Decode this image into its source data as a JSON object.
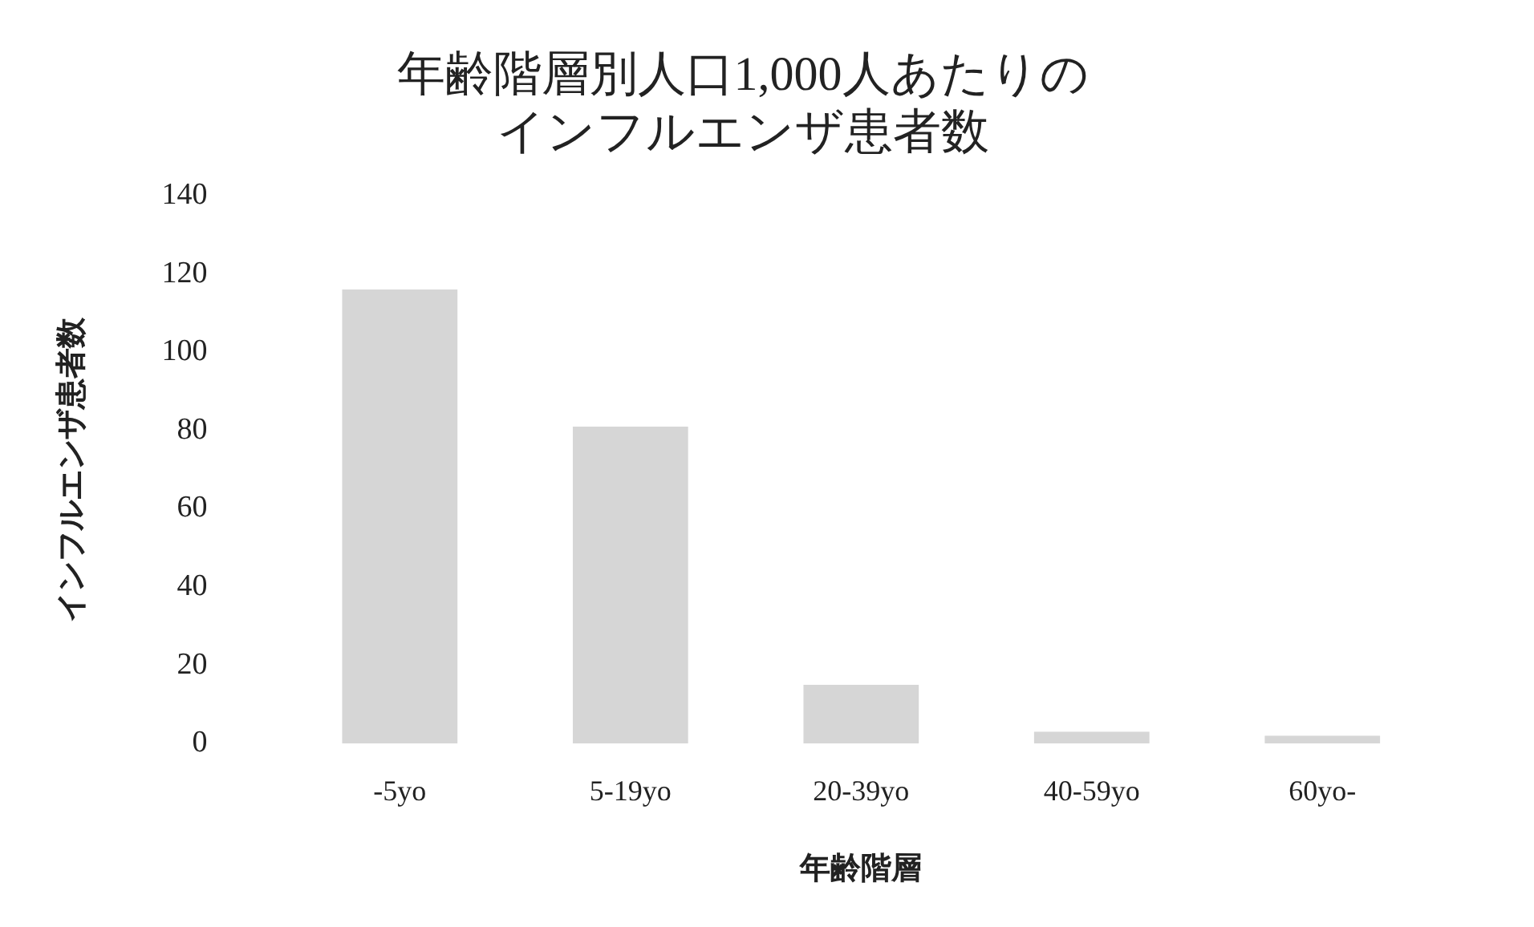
{
  "chart_data": {
    "type": "bar",
    "title": "年齢階層別人口1,000人あたりのインフルエンザ患者数",
    "xlabel": "年齢階層",
    "ylabel": "インフルエンザ患者数",
    "categories": [
      "-5yo",
      "5-19yo",
      "20-39yo",
      "40-59yo",
      "60yo-"
    ],
    "values": [
      116,
      81,
      15,
      3,
      2
    ],
    "color": "#d6d6d6",
    "ylim": [
      0,
      140
    ],
    "yticks": [
      0,
      20,
      40,
      60,
      80,
      100,
      120,
      140
    ]
  }
}
